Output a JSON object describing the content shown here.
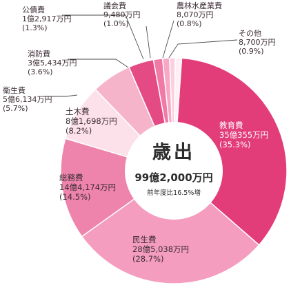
{
  "chart_data": {
    "type": "pie",
    "center": {
      "title": "歳出",
      "total": "99億2,000万円",
      "note": "前年度比16.5%増"
    },
    "slices": [
      {
        "name": "教育費",
        "amount": "35億355万円",
        "pct_text": "(35.3%)",
        "value": 35.3,
        "color": "#e23d79"
      },
      {
        "name": "民生費",
        "amount": "28億5,038万円",
        "pct_text": "(28.7%)",
        "value": 28.7,
        "color": "#f49dbe"
      },
      {
        "name": "総務費",
        "amount": "14億4,174万円",
        "pct_text": "(14.5%)",
        "value": 14.5,
        "color": "#ee84ab"
      },
      {
        "name": "土木費",
        "amount": "8億1,698万円",
        "pct_text": "(8.2%)",
        "value": 8.2,
        "color": "#fde1ea"
      },
      {
        "name": "衛生費",
        "amount": "5億6,134万円",
        "pct_text": "(5.7%)",
        "value": 5.7,
        "color": "#f6b4cb"
      },
      {
        "name": "消防費",
        "amount": "3億5,434万円",
        "pct_text": "(3.6%)",
        "value": 3.6,
        "color": "#e44a83"
      },
      {
        "name": "公債費",
        "amount": "1億2,917万円",
        "pct_text": "(1.3%)",
        "value": 1.3,
        "color": "#f07aa5"
      },
      {
        "name": "議会費",
        "amount": "9,480万円",
        "pct_text": "(1.0%)",
        "value": 1.0,
        "color": "#f7a8c4"
      },
      {
        "name": "農林水産業費",
        "amount": "8,070万円",
        "pct_text": "(0.8%)",
        "value": 0.8,
        "color": "#fbcfde"
      },
      {
        "name": "その他",
        "amount": "8,700万円",
        "pct_text": "(0.9%)",
        "value": 0.9,
        "color": "#fff0f5"
      }
    ]
  }
}
